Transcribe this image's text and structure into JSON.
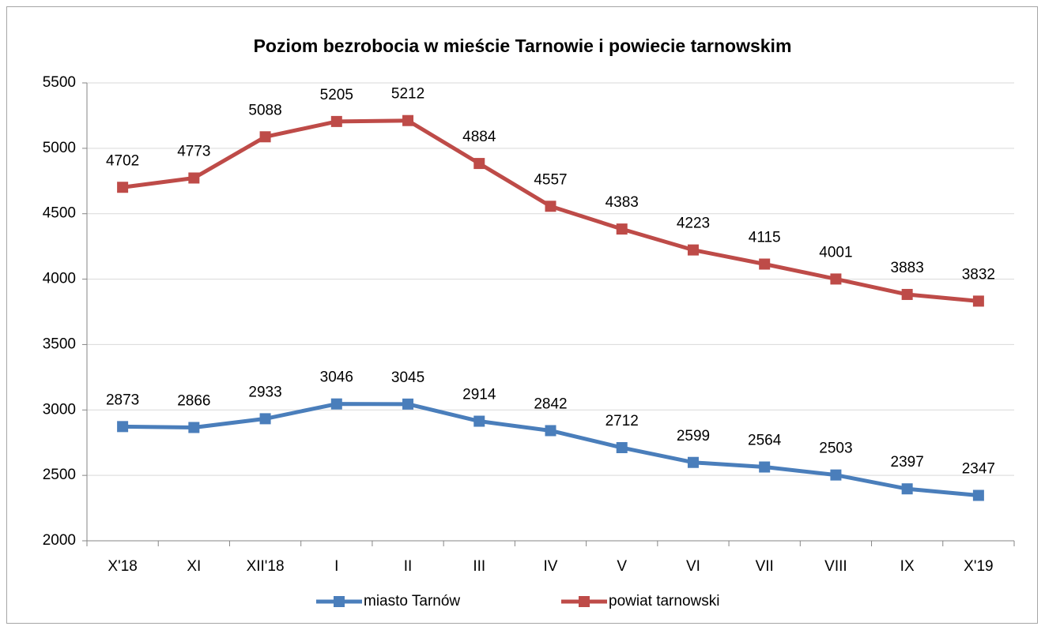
{
  "chart_data": {
    "type": "line",
    "title": "Poziom bezrobocia w mieście Tarnowie i powiecie tarnowskim",
    "categories": [
      "X'18",
      "XI",
      "XII'18",
      "I",
      "II",
      "III",
      "IV",
      "V",
      "VI",
      "VII",
      "VIII",
      "IX",
      "X'19"
    ],
    "series": [
      {
        "name": "miasto Tarnów",
        "color": "#4a7ebb",
        "values": [
          2873,
          2866,
          2933,
          3046,
          3045,
          2914,
          2842,
          2712,
          2599,
          2564,
          2503,
          2397,
          2347
        ]
      },
      {
        "name": "powiat tarnowski",
        "color": "#be4b48",
        "values": [
          4702,
          4773,
          5088,
          5205,
          5212,
          4884,
          4557,
          4383,
          4223,
          4115,
          4001,
          3883,
          3832
        ]
      }
    ],
    "ylim": [
      2000,
      5500
    ],
    "yticks": [
      2000,
      2500,
      3000,
      3500,
      4000,
      4500,
      5000,
      5500
    ],
    "grid": true,
    "legend": "bottom"
  }
}
